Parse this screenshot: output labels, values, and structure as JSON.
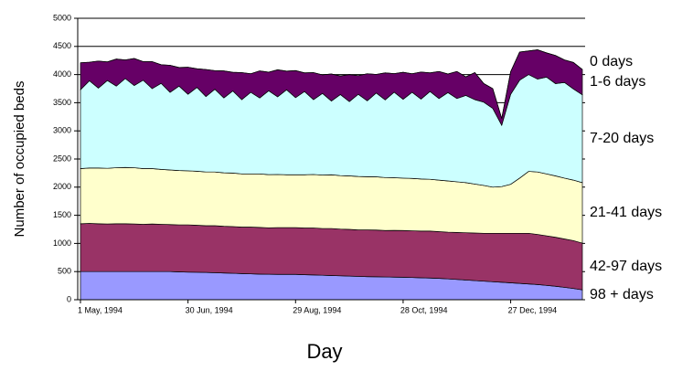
{
  "chart_data": {
    "type": "stacked_area",
    "y_label": "Number of occupied beds",
    "x_label": "Day",
    "categories": [
      "1 May, 1994",
      null,
      null,
      null,
      null,
      null,
      null,
      null,
      null,
      null,
      null,
      null,
      "30 Jun, 1994",
      null,
      null,
      null,
      null,
      null,
      null,
      null,
      null,
      null,
      null,
      null,
      "29 Aug, 1994",
      null,
      null,
      null,
      null,
      null,
      null,
      null,
      null,
      null,
      null,
      null,
      "28 Oct, 1994",
      null,
      null,
      null,
      null,
      null,
      null,
      null,
      null,
      null,
      null,
      null,
      "27 Dec, 1994",
      null,
      null,
      null,
      null,
      null,
      null,
      null,
      null
    ],
    "ylim": [
      0,
      5000
    ],
    "yticks": [
      0,
      500,
      1000,
      1500,
      2000,
      2500,
      3000,
      3500,
      4000,
      4500,
      5000
    ],
    "grid": true,
    "series": [
      {
        "name": "98 + days",
        "color": "#9999ff",
        "values": [
          500,
          500,
          500,
          500,
          500,
          500,
          500,
          500,
          500,
          500,
          500,
          495,
          490,
          488,
          485,
          480,
          475,
          470,
          465,
          460,
          455,
          452,
          450,
          450,
          450,
          445,
          440,
          435,
          430,
          425,
          420,
          415,
          410,
          408,
          405,
          402,
          400,
          395,
          390,
          385,
          380,
          370,
          360,
          350,
          340,
          330,
          320,
          310,
          300,
          290,
          280,
          270,
          255,
          240,
          220,
          200,
          175
        ]
      },
      {
        "name": "42-97 days",
        "color": "#993366",
        "values": [
          850,
          855,
          850,
          845,
          850,
          850,
          845,
          840,
          845,
          840,
          835,
          835,
          840,
          835,
          830,
          835,
          830,
          830,
          825,
          830,
          830,
          825,
          830,
          830,
          830,
          830,
          835,
          830,
          835,
          830,
          830,
          825,
          830,
          830,
          825,
          830,
          830,
          830,
          830,
          835,
          830,
          830,
          835,
          840,
          845,
          850,
          860,
          870,
          880,
          890,
          900,
          890,
          880,
          870,
          860,
          850,
          830
        ]
      },
      {
        "name": "21-41 days",
        "color": "#ffffcc",
        "values": [
          980,
          985,
          990,
          990,
          995,
          1000,
          1000,
          990,
          985,
          975,
          970,
          965,
          960,
          960,
          955,
          955,
          950,
          950,
          945,
          945,
          950,
          945,
          945,
          940,
          940,
          945,
          950,
          950,
          955,
          950,
          950,
          950,
          945,
          945,
          940,
          935,
          930,
          930,
          925,
          920,
          915,
          910,
          900,
          890,
          870,
          850,
          820,
          830,
          870,
          980,
          1100,
          1110,
          1100,
          1090,
          1080,
          1075,
          1075
        ]
      },
      {
        "name": "7-20 days",
        "color": "#ccffff",
        "values": [
          1400,
          1550,
          1420,
          1560,
          1450,
          1580,
          1460,
          1570,
          1420,
          1530,
          1380,
          1500,
          1360,
          1490,
          1340,
          1470,
          1330,
          1460,
          1320,
          1450,
          1350,
          1490,
          1380,
          1510,
          1370,
          1480,
          1330,
          1450,
          1310,
          1440,
          1320,
          1460,
          1350,
          1490,
          1380,
          1520,
          1400,
          1530,
          1420,
          1560,
          1450,
          1570,
          1480,
          1550,
          1500,
          1480,
          1400,
          1090,
          1600,
          1740,
          1720,
          1650,
          1720,
          1640,
          1700,
          1620,
          1560
        ]
      },
      {
        "name": "1-6 days",
        "color": "#660066",
        "values": [
          480,
          330,
          480,
          330,
          480,
          330,
          480,
          330,
          480,
          330,
          480,
          330,
          480,
          330,
          480,
          330,
          480,
          330,
          480,
          330,
          480,
          330,
          480,
          330,
          480,
          330,
          480,
          330,
          480,
          330,
          480,
          330,
          480,
          330,
          480,
          330,
          480,
          330,
          480,
          330,
          480,
          330,
          480,
          330,
          480,
          330,
          350,
          120,
          400,
          500,
          420,
          520,
          430,
          500,
          400,
          470,
          450
        ]
      },
      {
        "name": "0 days",
        "color": "#000000",
        "values": [
          0,
          0,
          0,
          0,
          0,
          0,
          0,
          0,
          0,
          0,
          0,
          0,
          0,
          0,
          0,
          0,
          0,
          0,
          0,
          0,
          0,
          0,
          0,
          0,
          0,
          0,
          0,
          0,
          0,
          0,
          0,
          0,
          0,
          0,
          0,
          0,
          0,
          0,
          0,
          0,
          0,
          0,
          0,
          0,
          0,
          0,
          0,
          0,
          0,
          0,
          0,
          0,
          0,
          0,
          0,
          0,
          0
        ]
      }
    ]
  }
}
